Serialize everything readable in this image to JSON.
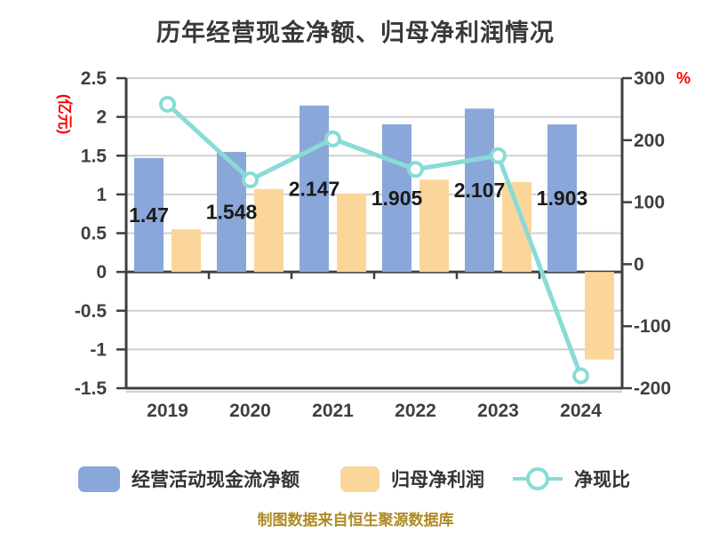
{
  "title": "历年经营现金净额、归母净利润情况",
  "source_note": "制图数据来自恒生聚源数据库",
  "colors": {
    "cash_bar": "#8AA7D9",
    "profit_bar": "#FBD69B",
    "ratio_line": "#89DBD6",
    "marker_fill": "#FFFFFF",
    "grid": "#CFCFCF",
    "axis": "#3F3F3F",
    "tick_text": "#3F3F3F",
    "bar_label_text": "#1A1A1A",
    "axis_unit_text": "#FE0000",
    "title_text": "#383838",
    "source_text": "#AE8A24",
    "background": "#FFFFFF"
  },
  "chart_data": {
    "type": "bar",
    "subtype": "grouped-bars-with-line-overlay",
    "title": "历年经营现金净额、归母净利润情况",
    "categories": [
      "2019",
      "2020",
      "2021",
      "2022",
      "2023",
      "2024"
    ],
    "series": [
      {
        "name": "经营活动现金流净额",
        "type": "bar",
        "axis": "left",
        "color": "#8AA7D9",
        "values": [
          1.47,
          1.548,
          2.147,
          1.905,
          2.107,
          1.903
        ],
        "data_labels": [
          "1.47",
          "1.548",
          "2.147",
          "1.905",
          "2.107",
          "1.903"
        ]
      },
      {
        "name": "归母净利润",
        "type": "bar",
        "axis": "left",
        "color": "#FBD69B",
        "values": [
          0.55,
          1.07,
          1.01,
          1.19,
          1.16,
          -1.13
        ],
        "data_labels": null,
        "note": "values estimated from bar heights; no printed labels"
      },
      {
        "name": "净现比",
        "type": "line",
        "axis": "right",
        "color": "#89DBD6",
        "values": [
          258,
          136,
          202,
          153,
          175,
          -180
        ],
        "data_labels": null,
        "note": "percent values estimated from line position; no printed labels"
      }
    ],
    "left_axis": {
      "unit_label": "(亿元)",
      "range": [
        -1.5,
        2.5
      ],
      "ticks": [
        "2.5",
        "2",
        "1.5",
        "1",
        "0.5",
        "0",
        "-0.5",
        "-1",
        "-1.5"
      ],
      "tick_values": [
        2.5,
        2,
        1.5,
        1,
        0.5,
        0,
        -0.5,
        -1,
        -1.5
      ]
    },
    "right_axis": {
      "unit_label": "%",
      "range": [
        -200,
        300
      ],
      "ticks": [
        "300",
        "200",
        "100",
        "0",
        "-100",
        "-200"
      ],
      "tick_values": [
        300,
        200,
        100,
        0,
        -100,
        -200
      ]
    },
    "grid": true,
    "legend_position": "bottom"
  },
  "legend": {
    "cash_label": "经营活动现金流净额",
    "profit_label": "归母净利润",
    "ratio_label": "净现比"
  }
}
